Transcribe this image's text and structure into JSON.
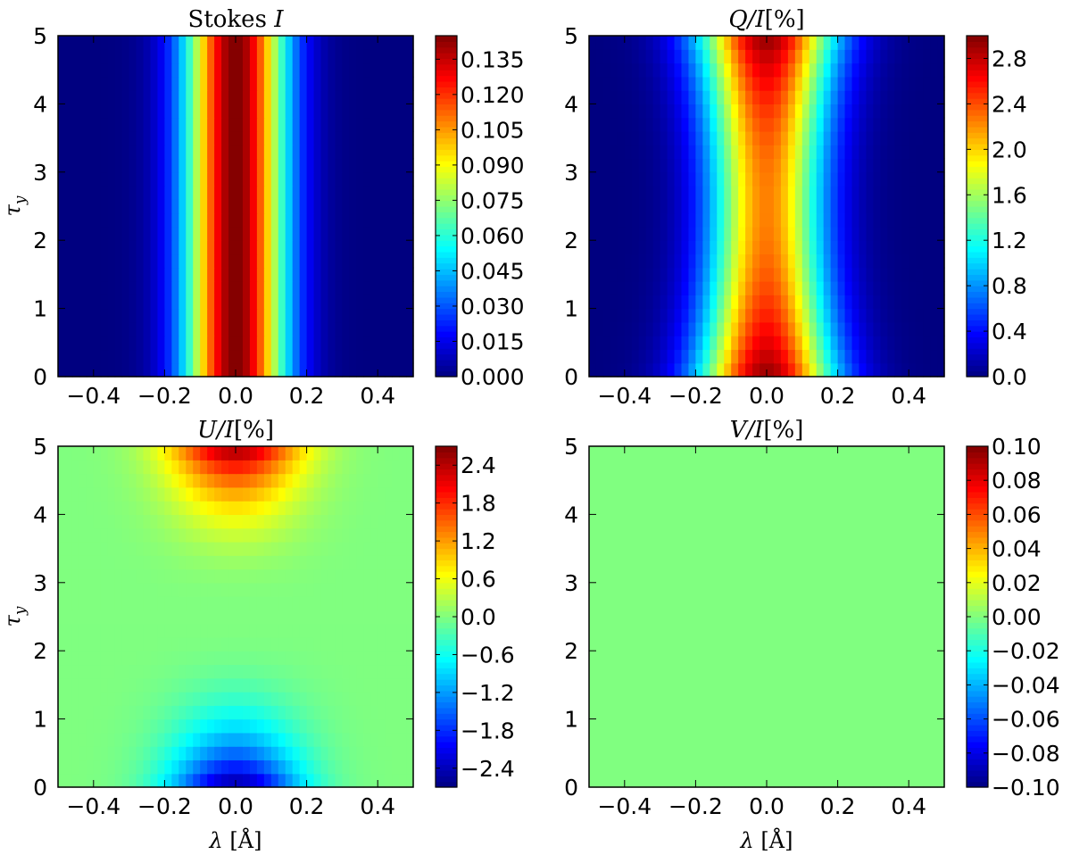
{
  "chart_data": [
    {
      "type": "heatmap",
      "title": "Stokes I",
      "title_main": "Stokes ",
      "title_var": "I",
      "xlabel": "",
      "ylabel": "τy",
      "ylabel_main": "τ",
      "ylabel_sub": "y",
      "xlim": [
        -0.5,
        0.5
      ],
      "ylim": [
        0,
        5
      ],
      "xticks": [
        -0.4,
        -0.2,
        0.0,
        0.2,
        0.4
      ],
      "xtick_labels": [
        "−0.4",
        "−0.2",
        "0.0",
        "0.2",
        "0.4"
      ],
      "yticks": [
        0,
        1,
        2,
        3,
        4,
        5
      ],
      "ytick_labels": [
        "0",
        "1",
        "2",
        "3",
        "4",
        "5"
      ],
      "colorbar": {
        "colormap": "jet",
        "range": [
          0,
          0.145
        ],
        "ticks": [
          0.0,
          0.015,
          0.03,
          0.045,
          0.06,
          0.075,
          0.09,
          0.105,
          0.12,
          0.135
        ],
        "tick_labels": [
          "0.000",
          "0.015",
          "0.030",
          "0.045",
          "0.060",
          "0.075",
          "0.090",
          "0.105",
          "0.120",
          "0.135"
        ]
      },
      "field": {
        "description": "Gaussian line profile in wavelength, constant with depth",
        "peak": 0.145,
        "center": 0.0,
        "sigma": 0.1
      }
    },
    {
      "type": "heatmap",
      "title": "Q/I[%]",
      "title_var": "Q/I",
      "title_rest": "[%]",
      "xlabel": "",
      "ylabel": "",
      "xlim": [
        -0.5,
        0.5
      ],
      "ylim": [
        0,
        5
      ],
      "xticks": [
        -0.4,
        -0.2,
        0.0,
        0.2,
        0.4
      ],
      "xtick_labels": [
        "−0.4",
        "−0.2",
        "0.0",
        "0.2",
        "0.4"
      ],
      "yticks": [
        0,
        1,
        2,
        3,
        4,
        5
      ],
      "ytick_labels": [
        "0",
        "1",
        "2",
        "3",
        "4",
        "5"
      ],
      "colorbar": {
        "colormap": "jet",
        "range": [
          0,
          3.0
        ],
        "ticks": [
          0.0,
          0.4,
          0.8,
          1.2,
          1.6,
          2.0,
          2.4,
          2.8
        ],
        "tick_labels": [
          "0.0",
          "0.4",
          "0.8",
          "1.2",
          "1.6",
          "2.0",
          "2.4",
          "2.8"
        ]
      },
      "field": {
        "description": "Line-centre polarization, strongest near τy=0 and τy=5, narrower at mid depth",
        "peak_edges": 2.95,
        "peak_middle": 2.25,
        "sigma_edges": 0.135,
        "sigma_middle": 0.115
      }
    },
    {
      "type": "heatmap",
      "title": "U/I[%]",
      "title_var": "U/I",
      "title_rest": "[%]",
      "xlabel": "λ [Å]",
      "xlabel_var": "λ",
      "xlabel_rest": " [Å]",
      "ylabel": "τy",
      "ylabel_main": "τ",
      "ylabel_sub": "y",
      "xlim": [
        -0.5,
        0.5
      ],
      "ylim": [
        0,
        5
      ],
      "xticks": [
        -0.4,
        -0.2,
        0.0,
        0.2,
        0.4
      ],
      "xtick_labels": [
        "−0.4",
        "−0.2",
        "0.0",
        "0.2",
        "0.4"
      ],
      "yticks": [
        0,
        1,
        2,
        3,
        4,
        5
      ],
      "ytick_labels": [
        "0",
        "1",
        "2",
        "3",
        "4",
        "5"
      ],
      "colorbar": {
        "colormap": "jet",
        "range": [
          -2.7,
          2.7
        ],
        "ticks": [
          -2.4,
          -1.8,
          -1.2,
          -0.6,
          0.0,
          0.6,
          1.2,
          1.8,
          2.4
        ],
        "tick_labels": [
          "−2.4",
          "−1.8",
          "−1.2",
          "−0.6",
          "0.0",
          "0.6",
          "1.2",
          "1.8",
          "2.4"
        ]
      },
      "field": {
        "description": "Antisymmetric in depth: +2.6 at line centre near τy=5, −2.6 near τy=0, zero at mid depth",
        "amplitude": 2.6,
        "sigma": 0.13
      }
    },
    {
      "type": "heatmap",
      "title": "V/I[%]",
      "title_var": "V/I",
      "title_rest": "[%]",
      "xlabel": "λ [Å]",
      "xlabel_var": "λ",
      "xlabel_rest": " [Å]",
      "ylabel": "",
      "xlim": [
        -0.5,
        0.5
      ],
      "ylim": [
        0,
        5
      ],
      "xticks": [
        -0.4,
        -0.2,
        0.0,
        0.2,
        0.4
      ],
      "xtick_labels": [
        "−0.4",
        "−0.2",
        "0.0",
        "0.2",
        "0.4"
      ],
      "yticks": [
        0,
        1,
        2,
        3,
        4,
        5
      ],
      "ytick_labels": [
        "0",
        "1",
        "2",
        "3",
        "4",
        "5"
      ],
      "colorbar": {
        "colormap": "jet",
        "range": [
          -0.1,
          0.1
        ],
        "ticks": [
          -0.1,
          -0.08,
          -0.06,
          -0.04,
          -0.02,
          0.0,
          0.02,
          0.04,
          0.06,
          0.08,
          0.1
        ],
        "tick_labels": [
          "−0.10",
          "−0.08",
          "−0.06",
          "−0.04",
          "−0.02",
          "0.00",
          "0.02",
          "0.04",
          "0.06",
          "0.08",
          "0.10"
        ]
      },
      "field": {
        "description": "Identically zero everywhere",
        "constant": 0.0
      }
    }
  ]
}
